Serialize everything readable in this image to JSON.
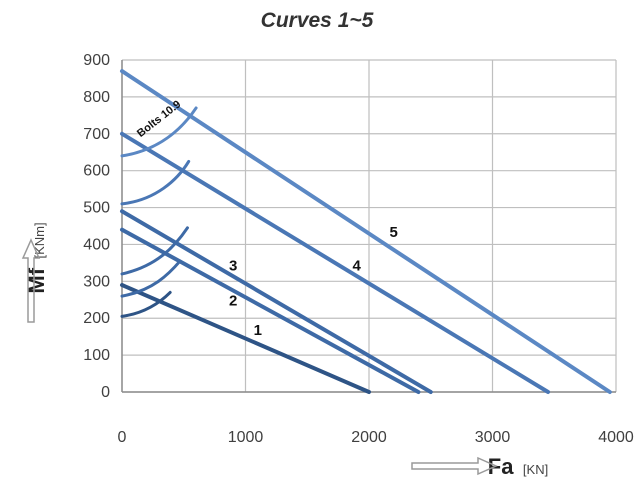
{
  "chart_data": {
    "type": "line",
    "title": "Curves 1~5",
    "xlabel": "Fa",
    "xunit": "[KN]",
    "ylabel": "Mf",
    "yunit": "[KNm]",
    "xlim": [
      0,
      4000
    ],
    "ylim": [
      0,
      900
    ],
    "xticks": [
      "0",
      "1000",
      "2000",
      "3000",
      "4000"
    ],
    "yticks": [
      "0",
      "100",
      "200",
      "300",
      "400",
      "500",
      "600",
      "700",
      "800",
      "900"
    ],
    "grid": true,
    "annotation": "Bolts 10.9",
    "colors": {
      "curve1": "#2e5486",
      "curve2": "#3e6aa6",
      "curve3": "#3e6aa6",
      "curve4": "#4a77b5",
      "curve5": "#5b88c4",
      "grid": "#bfbfbf",
      "axis": "#8c8c8c"
    },
    "series": [
      {
        "name": "1",
        "x": [
          0,
          2000
        ],
        "y": [
          290,
          0
        ],
        "bolt_arc": [
          [
            0,
            205
          ],
          [
            210,
            215
          ],
          [
            330,
            250
          ],
          [
            390,
            270
          ]
        ],
        "label_at": [
          1100,
          155
        ]
      },
      {
        "name": "2",
        "x": [
          0,
          2400
        ],
        "y": [
          440,
          0
        ],
        "bolt_arc": [
          [
            0,
            260
          ],
          [
            250,
            275
          ],
          [
            380,
            320
          ],
          [
            470,
            355
          ]
        ],
        "label_at": [
          900,
          235
        ]
      },
      {
        "name": "3",
        "x": [
          0,
          2500
        ],
        "y": [
          490,
          0
        ],
        "bolt_arc": [
          [
            0,
            320
          ],
          [
            270,
            340
          ],
          [
            420,
            390
          ],
          [
            530,
            445
          ]
        ],
        "label_at": [
          900,
          330
        ]
      },
      {
        "name": "4",
        "x": [
          0,
          3450
        ],
        "y": [
          700,
          0
        ],
        "bolt_arc": [
          [
            0,
            510
          ],
          [
            270,
            520
          ],
          [
            450,
            575
          ],
          [
            540,
            625
          ]
        ],
        "label_at": [
          1900,
          330
        ]
      },
      {
        "name": "5",
        "x": [
          0,
          3950
        ],
        "y": [
          870,
          0
        ],
        "bolt_arc": [
          [
            0,
            640
          ],
          [
            290,
            655
          ],
          [
            480,
            710
          ],
          [
            600,
            770
          ]
        ],
        "label_at": [
          2200,
          420
        ]
      }
    ]
  }
}
